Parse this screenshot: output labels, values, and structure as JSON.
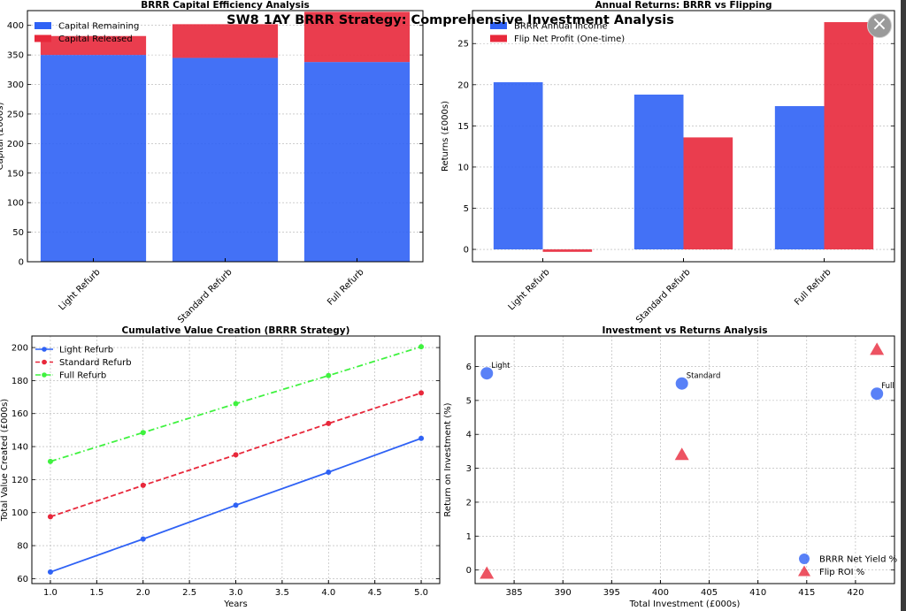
{
  "suptitle": "SW8 1AY BRRR Strategy: Comprehensive Investment Analysis",
  "close_label": "×",
  "colors": {
    "blue": "#2f62f5",
    "red": "#e8283b",
    "green": "#3ff23f"
  },
  "chart_data": [
    {
      "type": "bar",
      "title": "BRRR Capital Efficiency Analysis",
      "ylabel": "Capital (£000s)",
      "xlabel": "",
      "categories": [
        "Light Refurb",
        "Standard Refurb",
        "Full Refurb"
      ],
      "stacked": true,
      "series": [
        {
          "name": "Capital Remaining",
          "color": "#2f62f5",
          "values": [
            350,
            345,
            338
          ]
        },
        {
          "name": "Capital Released",
          "color": "#e8283b",
          "values": [
            32,
            57,
            85
          ]
        }
      ],
      "ylim": [
        0,
        425
      ],
      "yticks": [
        0,
        50,
        100,
        150,
        200,
        250,
        300,
        350,
        400
      ],
      "legend": "top-left",
      "grid": true
    },
    {
      "type": "bar",
      "title": "Annual Returns: BRRR vs Flipping",
      "ylabel": "Returns (£000s)",
      "xlabel": "",
      "categories": [
        "Light Refurb",
        "Standard Refurb",
        "Full Refurb"
      ],
      "grouped": true,
      "series": [
        {
          "name": "BRRR Annual Income",
          "color": "#2f62f5",
          "values": [
            20.3,
            18.8,
            17.4
          ]
        },
        {
          "name": "Flip Net Profit (One-time)",
          "color": "#e8283b",
          "values": [
            -0.3,
            13.6,
            27.6
          ]
        }
      ],
      "ylim": [
        -1.5,
        29
      ],
      "yticks": [
        0,
        5,
        10,
        15,
        20,
        25
      ],
      "legend": "top-left",
      "grid": true
    },
    {
      "type": "line",
      "title": "Cumulative Value Creation (BRRR Strategy)",
      "xlabel": "Years",
      "ylabel": "Total Value Created (£000s)",
      "x": [
        1,
        2,
        3,
        4,
        5
      ],
      "series": [
        {
          "name": "Light Refurb",
          "color": "#2f62f5",
          "dash": "solid",
          "values": [
            64,
            84,
            104.5,
            124.5,
            145
          ]
        },
        {
          "name": "Standard Refurb",
          "color": "#e8283b",
          "dash": "dashed",
          "values": [
            97.5,
            116.5,
            135,
            154,
            172.5
          ]
        },
        {
          "name": "Full Refurb",
          "color": "#3ff23f",
          "dash": "dashdot",
          "values": [
            131,
            148.5,
            166,
            183,
            200.5
          ]
        }
      ],
      "xlim": [
        0.8,
        5.2
      ],
      "ylim": [
        57,
        207
      ],
      "xticks": [
        "1.0",
        "1.5",
        "2.0",
        "2.5",
        "3.0",
        "3.5",
        "4.0",
        "4.5",
        "5.0"
      ],
      "yticks": [
        60,
        80,
        100,
        120,
        140,
        160,
        180,
        200
      ],
      "legend": "top-left",
      "grid": true
    },
    {
      "type": "scatter",
      "title": "Investment vs Returns Analysis",
      "xlabel": "Total Investment (£000s)",
      "ylabel": "Return on Investment (%)",
      "series": [
        {
          "name": "BRRR Net Yield %",
          "color": "#2f62f5",
          "marker": "circle",
          "points": [
            {
              "x": 382.2,
              "y": 5.8,
              "label": "Light"
            },
            {
              "x": 402.2,
              "y": 5.5,
              "label": "Standard"
            },
            {
              "x": 422.2,
              "y": 5.2,
              "label": "Full"
            }
          ]
        },
        {
          "name": "Flip ROI %",
          "color": "#e8283b",
          "marker": "triangle",
          "points": [
            {
              "x": 382.2,
              "y": -0.1
            },
            {
              "x": 402.2,
              "y": 3.4
            },
            {
              "x": 422.2,
              "y": 6.5
            }
          ]
        }
      ],
      "xlim": [
        381,
        424
      ],
      "ylim": [
        -0.4,
        6.9
      ],
      "xticks": [
        385,
        390,
        395,
        400,
        405,
        410,
        415,
        420
      ],
      "yticks": [
        0,
        1,
        2,
        3,
        4,
        5,
        6
      ],
      "legend": "bottom-right",
      "grid": true
    }
  ]
}
